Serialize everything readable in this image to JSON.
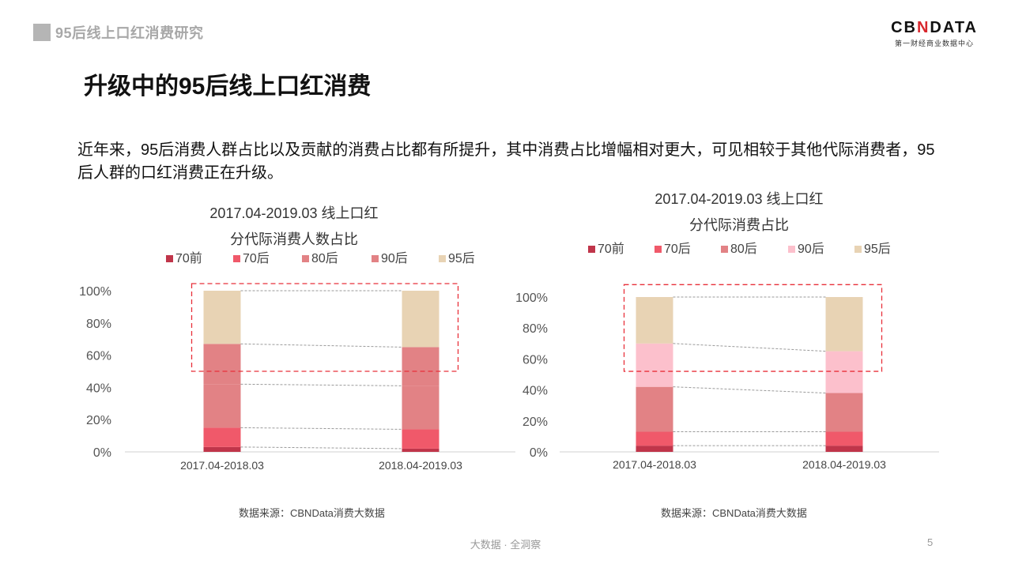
{
  "header": {
    "section_title": "95后线上口红消费研究"
  },
  "logo": {
    "main_prefix": "CB",
    "main_mark": "N",
    "main_suffix": "DATA",
    "sub": "第一财经商业数据中心"
  },
  "page_title": "升级中的95后线上口红消费",
  "intro": "近年来，95后消费人群占比以及贡献的消费占比都有所提升，其中消费占比增幅相对更大，可见相较于其他代际消费者，95后人群的口红消费正在升级。",
  "colors": {
    "70前": "#c0354a",
    "70后": "#f0596a",
    "80后": "#e28285",
    "90后_left": "#e28285",
    "90后_right": "#fcc0cc",
    "95后": "#e8d3b4",
    "highlight": "#e8303a"
  },
  "chart_data": [
    {
      "type": "bar",
      "stacked": true,
      "title": "2017.04-2019.03 线上口红",
      "subtitle": "分代际消费人数占比",
      "categories": [
        "2017.04-2018.03",
        "2018.04-2019.03"
      ],
      "legend": [
        "70前",
        "70后",
        "80后",
        "90后",
        "95后"
      ],
      "series": [
        {
          "name": "70前",
          "color": "#c0354a",
          "values": [
            3,
            2
          ]
        },
        {
          "name": "70后",
          "color": "#f0596a",
          "values": [
            12,
            12
          ]
        },
        {
          "name": "80后",
          "color": "#e28285",
          "values": [
            27,
            27
          ]
        },
        {
          "name": "90后",
          "color": "#e28285",
          "values": [
            25,
            24
          ]
        },
        {
          "name": "95后",
          "color": "#e8d3b4",
          "values": [
            33,
            35
          ]
        }
      ],
      "yticks": [
        "0%",
        "20%",
        "40%",
        "60%",
        "80%",
        "100%"
      ],
      "ylim": [
        0,
        100
      ],
      "highlight_range": [
        50,
        100
      ],
      "source": "数据来源：CBNData消费大数据"
    },
    {
      "type": "bar",
      "stacked": true,
      "title": "2017.04-2019.03 线上口红",
      "subtitle": "分代际消费占比",
      "categories": [
        "2017.04-2018.03",
        "2018.04-2019.03"
      ],
      "legend": [
        "70前",
        "70后",
        "80后",
        "90后",
        "95后"
      ],
      "series": [
        {
          "name": "70前",
          "color": "#c0354a",
          "values": [
            4,
            4
          ]
        },
        {
          "name": "70后",
          "color": "#f0596a",
          "values": [
            9,
            9
          ]
        },
        {
          "name": "80后",
          "color": "#e28285",
          "values": [
            29,
            25
          ]
        },
        {
          "name": "90后",
          "color": "#fcc0cc",
          "values": [
            28,
            27
          ]
        },
        {
          "name": "95后",
          "color": "#e8d3b4",
          "values": [
            30,
            35
          ]
        }
      ],
      "yticks": [
        "0%",
        "20%",
        "40%",
        "60%",
        "80%",
        "100%"
      ],
      "ylim": [
        0,
        100
      ],
      "highlight_range": [
        52,
        108
      ],
      "source": "数据来源：CBNData消费大数据"
    }
  ],
  "footer": {
    "slogan": "大数据 · 全洞察",
    "page_number": "5"
  }
}
